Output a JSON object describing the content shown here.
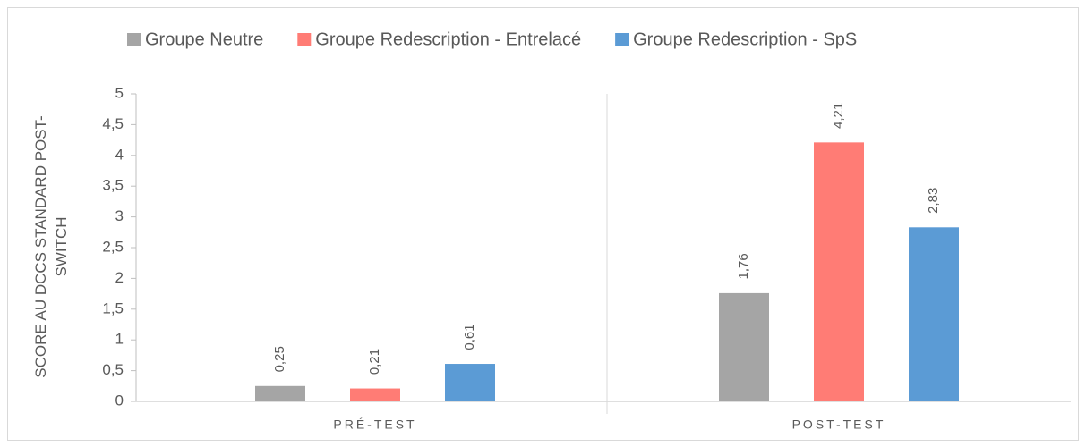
{
  "chart_data": {
    "type": "bar",
    "y_label": "SCORE AU DCCS STANDARD POST-SWITCH",
    "categories": [
      "PRÉ-TEST",
      "POST-TEST"
    ],
    "series": [
      {
        "name": "Groupe Neutre",
        "color": "#a5a5a5",
        "values": [
          0.25,
          1.76
        ],
        "value_labels": [
          "0,25",
          "1,76"
        ]
      },
      {
        "name": "Groupe Redescription - Entrelacé",
        "color": "#ff7c75",
        "values": [
          0.21,
          4.21
        ],
        "value_labels": [
          "0,21",
          "4,21"
        ]
      },
      {
        "name": "Groupe Redescription - SpS",
        "color": "#5b9bd5",
        "values": [
          0.61,
          2.83
        ],
        "value_labels": [
          "0,61",
          "2,83"
        ]
      }
    ],
    "ylim": [
      0,
      5
    ],
    "yticks": [
      0,
      {
        "value": 0.5,
        "label": "0,5"
      },
      1,
      {
        "value": 1.5,
        "label": "1,5"
      },
      2,
      {
        "value": 2.5,
        "label": "2,5"
      },
      3,
      {
        "value": 3.5,
        "label": "3,5"
      },
      4,
      {
        "value": 4.5,
        "label": "4,5"
      },
      5
    ],
    "legend": "top"
  }
}
